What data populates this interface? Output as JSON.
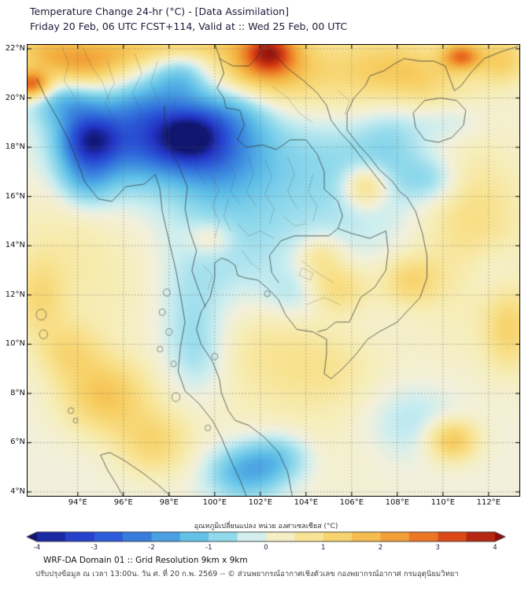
{
  "header": {
    "title": "Temperature Change 24-hr (°C) - [Data Assimilation]",
    "subtitle": "Friday 20 Feb, 06 UTC FCST+114, Valid at :: Wed 25 Feb, 00 UTC"
  },
  "axes": {
    "lat_ticks": [
      "22°N",
      "20°N",
      "18°N",
      "16°N",
      "14°N",
      "12°N",
      "10°N",
      "8°N",
      "6°N",
      "4°N"
    ],
    "lat_values": [
      22,
      20,
      18,
      16,
      14,
      12,
      10,
      8,
      6,
      4
    ],
    "lon_ticks": [
      "94°E",
      "96°E",
      "98°E",
      "100°E",
      "102°E",
      "104°E",
      "106°E",
      "108°E",
      "110°E",
      "112°E"
    ],
    "lon_values": [
      94,
      96,
      98,
      100,
      102,
      104,
      106,
      108,
      110,
      112
    ]
  },
  "chart_data": {
    "type": "heatmap",
    "title": "Temperature Change 24-hr (°C) - [Data Assimilation]",
    "valid_info": "Friday 20 Feb, 06 UTC FCST+114, Valid at :: Wed 25 Feb, 00 UTC",
    "units": "°C",
    "value_range": [
      -4,
      4
    ],
    "region": "Mainland Southeast Asia (Thailand, Myanmar, Laos, Cambodia, Vietnam)",
    "projection": {
      "lon_min": 91.8,
      "lon_max": 113.35,
      "lat_min": 3.84,
      "lat_max": 22.16
    },
    "colormap": [
      [
        -4.2,
        "#10166e"
      ],
      [
        -3.5,
        "#2333c4"
      ],
      [
        -2.8,
        "#2b59d8"
      ],
      [
        -2.0,
        "#3e8ee0"
      ],
      [
        -1.3,
        "#5fc0e8"
      ],
      [
        -0.7,
        "#96dcec"
      ],
      [
        -0.3,
        "#cdeef0"
      ],
      [
        0.0,
        "#f2f0dd"
      ],
      [
        0.35,
        "#f6eebb"
      ],
      [
        0.8,
        "#f8e391"
      ],
      [
        1.4,
        "#f7cf63"
      ],
      [
        2.1,
        "#f3ab3c"
      ],
      [
        2.8,
        "#ea7323"
      ],
      [
        3.4,
        "#d63b14"
      ],
      [
        4.2,
        "#8c0e0e"
      ]
    ],
    "anomaly_centers": [
      [
        102.4,
        21.9,
        1.1,
        0.85,
        2.2
      ],
      [
        102.2,
        21.4,
        2.3,
        1.4,
        1.5
      ],
      [
        102.0,
        20.9,
        3.2,
        1.8,
        0.7
      ],
      [
        94.3,
        21.4,
        1.7,
        1.1,
        1.8
      ],
      [
        92.4,
        21.9,
        1.6,
        1.0,
        1.3
      ],
      [
        91.95,
        20.55,
        0.8,
        0.55,
        2.8
      ],
      [
        96.3,
        21.9,
        1.8,
        0.8,
        1.0
      ],
      [
        98.8,
        22.15,
        2.2,
        0.55,
        0.9
      ],
      [
        107.5,
        21.4,
        2.5,
        1.3,
        1.0
      ],
      [
        110.8,
        21.7,
        0.85,
        0.55,
        2.4
      ],
      [
        112.6,
        21.6,
        1.2,
        1.0,
        1.3
      ],
      [
        109.3,
        20.6,
        2.0,
        1.2,
        0.6
      ],
      [
        106.6,
        16.4,
        0.95,
        0.85,
        1.4
      ],
      [
        111.2,
        15.3,
        2.2,
        2.4,
        0.8
      ],
      [
        112.9,
        10.6,
        1.0,
        1.6,
        1.0
      ],
      [
        108.6,
        12.6,
        1.3,
        1.0,
        1.1
      ],
      [
        105.3,
        12.3,
        1.4,
        1.0,
        1.1
      ],
      [
        104.6,
        13.6,
        1.0,
        0.8,
        0.8
      ],
      [
        95.2,
        7.9,
        1.9,
        1.5,
        1.5
      ],
      [
        93.6,
        9.7,
        1.4,
        1.2,
        0.9
      ],
      [
        92.3,
        11.9,
        1.1,
        1.6,
        0.9
      ],
      [
        97.3,
        6.0,
        1.6,
        1.3,
        1.1
      ],
      [
        110.4,
        6.1,
        1.1,
        0.85,
        1.6
      ],
      [
        99.8,
        14.3,
        1.0,
        0.7,
        0.7
      ],
      [
        102.3,
        9.9,
        2.3,
        2.0,
        0.5
      ],
      [
        104.9,
        9.0,
        1.9,
        1.5,
        0.4
      ],
      [
        104.5,
        7.8,
        5.5,
        3.5,
        0.35
      ],
      [
        95.0,
        12.6,
        3.2,
        2.8,
        0.4
      ],
      [
        109.5,
        19.0,
        3.5,
        2.5,
        0.4
      ],
      [
        111.8,
        12.5,
        2.8,
        3.5,
        0.4
      ],
      [
        93.2,
        14.8,
        2.4,
        2.4,
        0.3
      ],
      [
        106.3,
        20.3,
        2.8,
        1.6,
        0.5
      ],
      [
        94.6,
        18.35,
        1.25,
        0.95,
        -2.3
      ],
      [
        95.2,
        17.9,
        2.2,
        1.7,
        -1.4
      ],
      [
        94.35,
        16.9,
        1.2,
        1.3,
        -1.1
      ],
      [
        97.3,
        18.3,
        1.6,
        1.4,
        -1.4
      ],
      [
        96.8,
        19.6,
        1.9,
        1.1,
        -1.1
      ],
      [
        93.6,
        19.8,
        1.5,
        1.0,
        -1.4
      ],
      [
        98.9,
        18.5,
        1.35,
        1.05,
        -2.3
      ],
      [
        99.7,
        18.0,
        2.1,
        1.6,
        -1.4
      ],
      [
        100.3,
        17.5,
        3.0,
        2.1,
        -0.8
      ],
      [
        100.8,
        19.6,
        1.8,
        1.2,
        -1.0
      ],
      [
        98.5,
        20.8,
        1.4,
        1.0,
        -1.2
      ],
      [
        103.5,
        16.5,
        5.5,
        3.5,
        -0.5
      ],
      [
        106.6,
        17.6,
        3.0,
        2.4,
        -0.45
      ],
      [
        109.5,
        16.7,
        1.3,
        1.0,
        -0.8
      ],
      [
        110.2,
        19.1,
        1.6,
        1.0,
        -0.6
      ],
      [
        100.6,
        13.6,
        2.6,
        2.4,
        -0.4
      ],
      [
        98.9,
        11.4,
        1.4,
        2.2,
        -0.5
      ],
      [
        99.3,
        9.5,
        1.3,
        1.6,
        -0.55
      ],
      [
        103.6,
        12.0,
        1.4,
        1.0,
        -0.55
      ],
      [
        101.3,
        4.8,
        1.6,
        1.1,
        -1.5
      ],
      [
        102.8,
        5.4,
        1.4,
        1.0,
        -1.0
      ],
      [
        108.6,
        6.9,
        2.2,
        1.6,
        -0.65
      ],
      [
        112.2,
        13.0,
        1.4,
        1.4,
        -0.45
      ],
      [
        107.8,
        18.6,
        1.5,
        1.8,
        -0.6
      ]
    ]
  },
  "colorbar": {
    "label": "อุณหภูมิเปลี่ยนแปลง หน่วย องศาเซลเซียส (°C)",
    "ticks": [
      "-4",
      "-3",
      "-2",
      "-1",
      "0",
      "1",
      "2",
      "3",
      "4"
    ]
  },
  "footer": {
    "line1": "WRF-DA Domain 01 :: Grid Resolution 9km x 9km",
    "line2": "ปรับปรุงข้อมูล ณ เวลา 13:00น. วัน ศ. ที่ 20 ก.พ. 2569 -- © ส่วนพยากรณ์อากาศเชิงตัวเลข กองพยากรณ์อากาศ กรมอุตุนิยมวิทยา"
  }
}
